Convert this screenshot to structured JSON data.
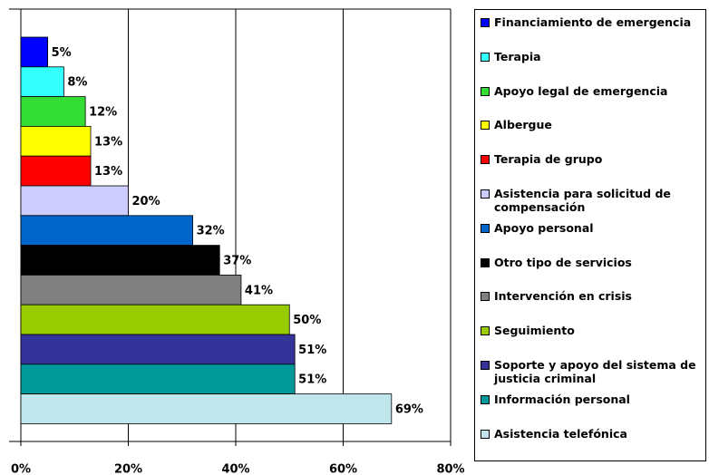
{
  "chart_data": {
    "type": "bar",
    "orientation": "horizontal",
    "categories": [
      "Financiamiento de emergencia",
      "Terapia",
      "Apoyo legal de emergencia",
      "Albergue",
      "Terapia de grupo",
      "Asistencia para solicitud de compensación",
      "Apoyo personal",
      "Otro tipo de servicios",
      "Intervención en crisis",
      "Seguimiento",
      "Soporte y apoyo del sistema de justicia criminal",
      "Información personal",
      "Asistencia telefónica"
    ],
    "values": [
      5,
      8,
      12,
      13,
      13,
      20,
      32,
      37,
      41,
      50,
      51,
      51,
      69
    ],
    "value_labels": [
      "5%",
      "8%",
      "12%",
      "13%",
      "13%",
      "20%",
      "32%",
      "37%",
      "41%",
      "50%",
      "51%",
      "51%",
      "69%"
    ],
    "colors": [
      "#0000ff",
      "#33ffff",
      "#33dd33",
      "#ffff00",
      "#ff0000",
      "#ccccff",
      "#0066cc",
      "#000000",
      "#808080",
      "#99cc00",
      "#333399",
      "#009999",
      "#bfe6ea"
    ],
    "xlim": [
      0,
      80
    ],
    "xticks": [
      {
        "value": 0,
        "label": "0%"
      },
      {
        "value": 20,
        "label": "20%"
      },
      {
        "value": 40,
        "label": "40%"
      },
      {
        "value": 60,
        "label": "60%"
      },
      {
        "value": 80,
        "label": "80%"
      }
    ],
    "grid": true,
    "legend": "right"
  }
}
